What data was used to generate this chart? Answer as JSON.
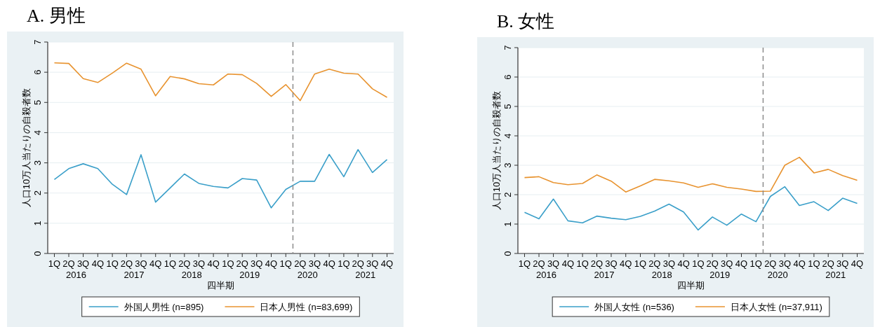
{
  "chart_data": [
    {
      "type": "line",
      "title": "A.  男性",
      "xlabel": "四半期",
      "ylabel": "人口10万人当たりの自殺者数",
      "x": [
        "2016-01",
        "2016-04",
        "2016-07",
        "2016-10",
        "2017-01",
        "2017-04",
        "2017-07",
        "2017-10",
        "2018-01",
        "2018-04",
        "2018-07",
        "2018-10",
        "2019-01",
        "2019-04",
        "2019-07",
        "2019-10",
        "2020-01",
        "2020-04",
        "2020-07",
        "2020-10",
        "2021-01",
        "2021-04",
        "2021-07",
        "2021-10"
      ],
      "xlim": [
        "2015-11-20",
        "2021-11-12"
      ],
      "xticks": [
        {
          "value": "2016-01",
          "label": "1Q"
        },
        {
          "value": "2016-04",
          "label": "2Q"
        },
        {
          "value": "2016-07",
          "label": "3Q"
        },
        {
          "value": "2016-10",
          "label": "4Q"
        },
        {
          "value": "2017-01",
          "label": "1Q"
        },
        {
          "value": "2017-04",
          "label": "2Q"
        },
        {
          "value": "2017-07",
          "label": "3Q"
        },
        {
          "value": "2017-10",
          "label": "4Q"
        },
        {
          "value": "2018-01",
          "label": "1Q"
        },
        {
          "value": "2018-04",
          "label": "2Q"
        },
        {
          "value": "2018-07",
          "label": "3Q"
        },
        {
          "value": "2018-10",
          "label": "4Q"
        },
        {
          "value": "2019-01",
          "label": "1Q"
        },
        {
          "value": "2019-04",
          "label": "2Q"
        },
        {
          "value": "2019-07",
          "label": "3Q"
        },
        {
          "value": "2019-10",
          "label": "4Q"
        },
        {
          "value": "2020-01",
          "label": "1Q"
        },
        {
          "value": "2020-04",
          "label": "2Q"
        },
        {
          "value": "2020-07",
          "label": "3Q"
        },
        {
          "value": "2020-10",
          "label": "4Q"
        },
        {
          "value": "2021-01",
          "label": "1Q"
        },
        {
          "value": "2021-04",
          "label": "2Q"
        },
        {
          "value": "2021-07",
          "label": "3Q"
        },
        {
          "value": "2021-10",
          "label": "4Q"
        }
      ],
      "ylim": [
        0,
        7
      ],
      "yticks": [
        0,
        1,
        2,
        3,
        4,
        5,
        6,
        7
      ],
      "grid": "y",
      "legend": "bottom",
      "ref_lines": [
        {
          "axis": "x",
          "value": "2020-02-15",
          "color": "#8c8c8c",
          "line_style": "dashed"
        }
      ],
      "annotations": [
        "2016",
        "2017",
        "2018",
        "2019",
        "2020",
        "2021"
      ],
      "series": [
        {
          "name": "外国人男性 (n=895)",
          "color": "#3a9fc9",
          "values": [
            2.45,
            2.81,
            2.97,
            2.81,
            2.29,
            1.95,
            3.27,
            1.7,
            2.17,
            2.63,
            2.32,
            2.22,
            2.17,
            2.48,
            2.43,
            1.51,
            2.12,
            2.39,
            2.39,
            3.28,
            2.54,
            3.44,
            2.68,
            3.11
          ]
        },
        {
          "name": "日本人男性 (n=83,699)",
          "color": "#e8932f",
          "values": [
            6.31,
            6.29,
            5.79,
            5.66,
            5.97,
            6.3,
            6.1,
            5.22,
            5.86,
            5.78,
            5.62,
            5.58,
            5.94,
            5.92,
            5.63,
            5.2,
            5.59,
            5.06,
            5.94,
            6.1,
            5.97,
            5.94,
            5.45,
            5.17
          ]
        }
      ]
    },
    {
      "type": "line",
      "title": "B.  女性",
      "xlabel": "四半期",
      "ylabel": "人口10万人当たりの自殺者数",
      "x": [
        "2016-01",
        "2016-04",
        "2016-07",
        "2016-10",
        "2017-01",
        "2017-04",
        "2017-07",
        "2017-10",
        "2018-01",
        "2018-04",
        "2018-07",
        "2018-10",
        "2019-01",
        "2019-04",
        "2019-07",
        "2019-10",
        "2020-01",
        "2020-04",
        "2020-07",
        "2020-10",
        "2021-01",
        "2021-04",
        "2021-07",
        "2021-10"
      ],
      "xlim": [
        "2015-11-20",
        "2021-11-12"
      ],
      "xticks": [
        {
          "value": "2016-01",
          "label": "1Q"
        },
        {
          "value": "2016-04",
          "label": "2Q"
        },
        {
          "value": "2016-07",
          "label": "3Q"
        },
        {
          "value": "2016-10",
          "label": "4Q"
        },
        {
          "value": "2017-01",
          "label": "1Q"
        },
        {
          "value": "2017-04",
          "label": "2Q"
        },
        {
          "value": "2017-07",
          "label": "3Q"
        },
        {
          "value": "2017-10",
          "label": "4Q"
        },
        {
          "value": "2018-01",
          "label": "1Q"
        },
        {
          "value": "2018-04",
          "label": "2Q"
        },
        {
          "value": "2018-07",
          "label": "3Q"
        },
        {
          "value": "2018-10",
          "label": "4Q"
        },
        {
          "value": "2019-01",
          "label": "1Q"
        },
        {
          "value": "2019-04",
          "label": "2Q"
        },
        {
          "value": "2019-07",
          "label": "3Q"
        },
        {
          "value": "2019-10",
          "label": "4Q"
        },
        {
          "value": "2020-01",
          "label": "1Q"
        },
        {
          "value": "2020-04",
          "label": "2Q"
        },
        {
          "value": "2020-07",
          "label": "3Q"
        },
        {
          "value": "2020-10",
          "label": "4Q"
        },
        {
          "value": "2021-01",
          "label": "1Q"
        },
        {
          "value": "2021-04",
          "label": "2Q"
        },
        {
          "value": "2021-07",
          "label": "3Q"
        },
        {
          "value": "2021-10",
          "label": "4Q"
        }
      ],
      "ylim": [
        0,
        7
      ],
      "yticks": [
        0,
        1,
        2,
        3,
        4,
        5,
        6,
        7
      ],
      "grid": "y",
      "legend": "bottom",
      "ref_lines": [
        {
          "axis": "x",
          "value": "2020-02-15",
          "color": "#8c8c8c",
          "line_style": "dashed"
        }
      ],
      "annotations": [
        "2016",
        "2017",
        "2018",
        "2019",
        "2020",
        "2021"
      ],
      "series": [
        {
          "name": "外国人女性 (n=536)",
          "color": "#3a9fc9",
          "values": [
            1.4,
            1.18,
            1.85,
            1.11,
            1.04,
            1.27,
            1.2,
            1.15,
            1.26,
            1.44,
            1.68,
            1.41,
            0.8,
            1.24,
            0.96,
            1.34,
            1.08,
            1.94,
            2.27,
            1.63,
            1.76,
            1.46,
            1.88,
            1.7
          ]
        },
        {
          "name": "日本人女性 (n=37,911)",
          "color": "#e8932f",
          "values": [
            2.58,
            2.61,
            2.41,
            2.34,
            2.38,
            2.67,
            2.46,
            2.09,
            2.3,
            2.52,
            2.47,
            2.4,
            2.25,
            2.37,
            2.25,
            2.19,
            2.11,
            2.12,
            3.0,
            3.27,
            2.74,
            2.86,
            2.65,
            2.49
          ]
        }
      ]
    }
  ]
}
